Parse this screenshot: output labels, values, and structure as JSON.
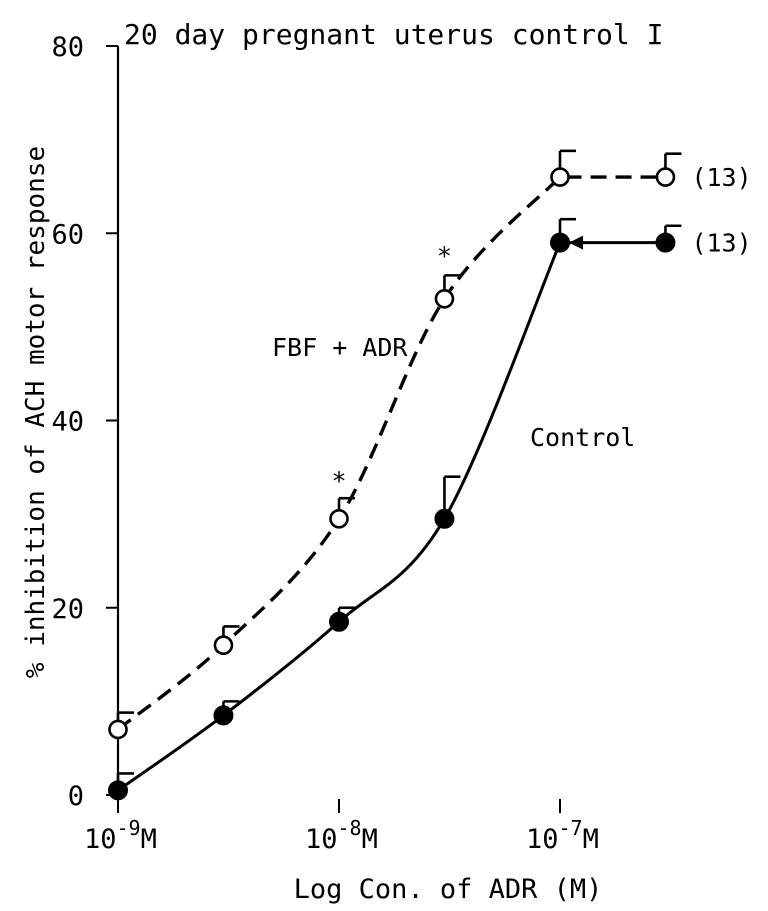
{
  "chart_data": {
    "type": "line",
    "title": "20 day pregnant uterus control I",
    "xlabel": "Log Con. of ADR (M)",
    "ylabel": "% inhibition of ACH motor response",
    "x_scale": "log",
    "xlim": [
      7e-10,
      6e-07
    ],
    "ylim": [
      0,
      80
    ],
    "x_ticks": [
      {
        "value": 1e-09,
        "base": "10",
        "exp": "-9",
        "unit": "M"
      },
      {
        "value": 1e-08,
        "base": "10",
        "exp": "-8",
        "unit": "M"
      },
      {
        "value": 1e-07,
        "base": "10",
        "exp": "-7",
        "unit": "M"
      }
    ],
    "y_ticks": [
      0,
      20,
      40,
      60,
      80
    ],
    "grid": false,
    "series": [
      {
        "name": "FBF + ADR",
        "style": "dashed",
        "marker": "open-circle",
        "color": "#000000",
        "points": [
          {
            "x": 1e-09,
            "y": 7,
            "err": 1.8
          },
          {
            "x": 3e-09,
            "y": 16,
            "err": 2
          },
          {
            "x": 1e-08,
            "y": 29.5,
            "err": 2.2,
            "significant": true
          },
          {
            "x": 3e-08,
            "y": 53,
            "err": 2.5,
            "significant": true
          },
          {
            "x": 1e-07,
            "y": 66,
            "err": 2.8
          },
          {
            "x": 3e-07,
            "y": 66,
            "err": 2.5
          }
        ],
        "n_label": "(13)"
      },
      {
        "name": "Control",
        "style": "solid",
        "marker": "filled-circle",
        "color": "#000000",
        "points": [
          {
            "x": 1e-09,
            "y": 0.5,
            "err": 1.8
          },
          {
            "x": 3e-09,
            "y": 8.5,
            "err": 1.5
          },
          {
            "x": 1e-08,
            "y": 18.5,
            "err": 1.5
          },
          {
            "x": 3e-08,
            "y": 29.5,
            "err": 4.5
          },
          {
            "x": 1e-07,
            "y": 59,
            "err": 2.5
          },
          {
            "x": 3e-07,
            "y": 59,
            "err": 1.8
          }
        ],
        "n_label": "(13)"
      }
    ],
    "annotations": [
      {
        "text": "*",
        "x": 1e-08,
        "y": 33.5
      },
      {
        "text": "*",
        "x": 3e-08,
        "y": 57.5
      }
    ]
  }
}
